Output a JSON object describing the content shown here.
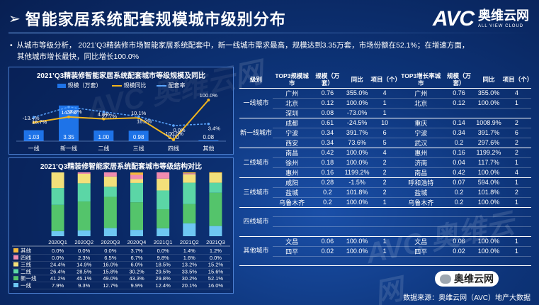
{
  "title": "智能家居系统配套规模城市级别分布",
  "logo": {
    "avc": "AVC",
    "cn": "奥维云网",
    "en": "ALL VIEW CLOUD"
  },
  "bullet": {
    "line1": "从城市等级分析， 2021’Q3精装修市场智能家居系统配套中，新一线城市需求最高，规模达到3.35万套，市场份额在52.1%；在增速方面，",
    "line2": "其他城市增长最快，同比增长100.0%"
  },
  "watermark": "AVC 奥维云网",
  "colors": {
    "bar": "#1e73e8",
    "yoy": "#f2b51c",
    "share": "#5aa5ff"
  },
  "chart_data": [
    {
      "type": "bar",
      "title": "2021’Q3精装修智能家居系统配套城市等级规模及同比",
      "legend": [
        "规模（万套）",
        "规模同比",
        "配套率"
      ],
      "categories": [
        "一线",
        "新一线",
        "二线",
        "三线",
        "四线",
        "其他"
      ],
      "series": [
        {
          "name": "规模（万套）",
          "values": [
            1.03,
            3.35,
            1.0,
            0.98,
            0.0,
            0.08
          ],
          "labels": [
            "1.03",
            "3.35",
            "1.00",
            "0.98",
            "0.00",
            "0.08"
          ]
        },
        {
          "name": "规模同比",
          "values": [
            -13.4,
            14.8,
            4.8,
            10.1,
            -100.0,
            100.0
          ],
          "labels": [
            "-13.4%",
            "14.8%",
            "4.8%",
            "10.1%",
            "-100.0%",
            "100.0%"
          ]
        },
        {
          "name": "配套率",
          "values": [
            16.7,
            37.3,
            27.7,
            18.2,
            0.0,
            3.4
          ],
          "labels": [
            "16.7%",
            "37.3%",
            "27.7%",
            "18.2%",
            "0.0%",
            "3.4%"
          ]
        }
      ]
    },
    {
      "type": "bar",
      "stacked": true,
      "title": "2021’Q3精装修智能家居系统配套城市等级结构对比",
      "categories": [
        "2020Q1",
        "2020Q2",
        "2020Q3",
        "2020Q4",
        "2021Q1",
        "2021Q2",
        "2021Q3"
      ],
      "series": [
        {
          "name": "其他",
          "color": "#f5b93a",
          "values": [
            0.0,
            0.0,
            0.0,
            3.7,
            0.0,
            1.4,
            1.2
          ],
          "labels": [
            "0.0%",
            "0.0%",
            "0.0%",
            "3.7%",
            "0.0%",
            "1.4%",
            "1.2%"
          ]
        },
        {
          "name": "四线",
          "color": "#f08bb0",
          "values": [
            0.0,
            2.3,
            6.5,
            6.7,
            9.8,
            1.6,
            0.0
          ],
          "labels": [
            "0.0%",
            "2.3%",
            "6.5%",
            "6.7%",
            "9.8%",
            "1.6%",
            "0.0%"
          ]
        },
        {
          "name": "三线",
          "color": "#f3e07a",
          "values": [
            24.4,
            14.9,
            16.0,
            6.0,
            18.5,
            13.2,
            15.2
          ],
          "labels": [
            "24.4%",
            "14.9%",
            "16.0%",
            "6.0%",
            "18.5%",
            "13.2%",
            "15.2%"
          ]
        },
        {
          "name": "二线",
          "color": "#5bd6a6",
          "values": [
            26.4,
            28.5,
            15.8,
            30.2,
            29.5,
            33.5,
            15.6
          ],
          "labels": [
            "26.4%",
            "28.5%",
            "15.8%",
            "30.2%",
            "29.5%",
            "33.5%",
            "15.6%"
          ]
        },
        {
          "name": "新一线",
          "color": "#54c46b",
          "values": [
            41.2,
            45.1,
            49.0,
            43.3,
            29.8,
            30.2,
            52.1
          ],
          "labels": [
            "41.2%",
            "45.1%",
            "49.0%",
            "43.3%",
            "29.8%",
            "30.2%",
            "52.1%"
          ]
        },
        {
          "name": "一线",
          "color": "#6ec7f2",
          "values": [
            7.9,
            9.3,
            12.7,
            9.9,
            12.4,
            20.1,
            16.0
          ],
          "labels": [
            "7.9%",
            "9.3%",
            "12.7%",
            "9.9%",
            "12.4%",
            "20.1%",
            "16.0%"
          ]
        }
      ]
    },
    {
      "type": "table",
      "headers": [
        "级别",
        "TOP3规模城市",
        "规模（万套）",
        "同比",
        "项目（个）",
        "TOP3增长率城市",
        "规模（万套）",
        "同比",
        "项目（个）"
      ],
      "groups": [
        {
          "tier": "一线城市",
          "rows": [
            [
              "广州",
              "0.76",
              "355.0%",
              "4",
              "广州",
              "0.76",
              "355.0%",
              "4"
            ],
            [
              "北京",
              "0.12",
              "100.0%",
              "1",
              "北京",
              "0.12",
              "100.0%",
              "1"
            ],
            [
              "深圳",
              "0.08",
              "-73.0%",
              "1",
              "",
              "",
              "",
              ""
            ]
          ]
        },
        {
          "tier": "新一线城市",
          "rows": [
            [
              "成都",
              "0.61",
              "-24.5%",
              "10",
              "重庆",
              "0.14",
              "1008.9%",
              "2"
            ],
            [
              "宁波",
              "0.34",
              "391.7%",
              "6",
              "宁波",
              "0.34",
              "391.7%",
              "6"
            ],
            [
              "西安",
              "0.34",
              "73.6%",
              "5",
              "武汉",
              "0.2",
              "297.6%",
              "2"
            ]
          ]
        },
        {
          "tier": "二线城市",
          "rows": [
            [
              "南昌",
              "0.42",
              "100.0%",
              "4",
              "惠州",
              "0.16",
              "1199.2%",
              "2"
            ],
            [
              "徐州",
              "0.18",
              "100.0%",
              "2",
              "济南",
              "0.04",
              "117.7%",
              "1"
            ],
            [
              "惠州",
              "0.16",
              "1199.2%",
              "2",
              "南昌",
              "0.42",
              "100.0%",
              "4"
            ]
          ]
        },
        {
          "tier": "三线城市",
          "rows": [
            [
              "咸阳",
              "0.28",
              "-1.5%",
              "2",
              "呼和浩特",
              "0.07",
              "594.0%",
              "1"
            ],
            [
              "盐城",
              "0.2",
              "101.8%",
              "2",
              "盐城",
              "0.2",
              "101.8%",
              "2"
            ],
            [
              "乌鲁木齐",
              "0.2",
              "100.0%",
              "1",
              "乌鲁木齐",
              "0.2",
              "100.0%",
              "1"
            ]
          ]
        },
        {
          "tier": "四线城市",
          "rows": [
            [
              "",
              "",
              "",
              "",
              "",
              "",
              "",
              ""
            ],
            [
              "",
              "",
              "",
              "",
              "",
              "",
              "",
              ""
            ],
            [
              "",
              "",
              "",
              "",
              "",
              "",
              "",
              ""
            ]
          ]
        },
        {
          "tier": "其他城市",
          "rows": [
            [
              "文昌",
              "0.06",
              "100.0%",
              "1",
              "文昌",
              "0.06",
              "100.0%",
              "1"
            ],
            [
              "四平",
              "0.02",
              "100.0%",
              "1",
              "四平",
              "0.02",
              "100.0%",
              "1"
            ],
            [
              "",
              "",
              "",
              "",
              "",
              "",
              "",
              ""
            ]
          ]
        }
      ]
    }
  ],
  "source": "数据来源：奥维云网（AVC）地产大数据",
  "wechat_label": "奥维云网"
}
